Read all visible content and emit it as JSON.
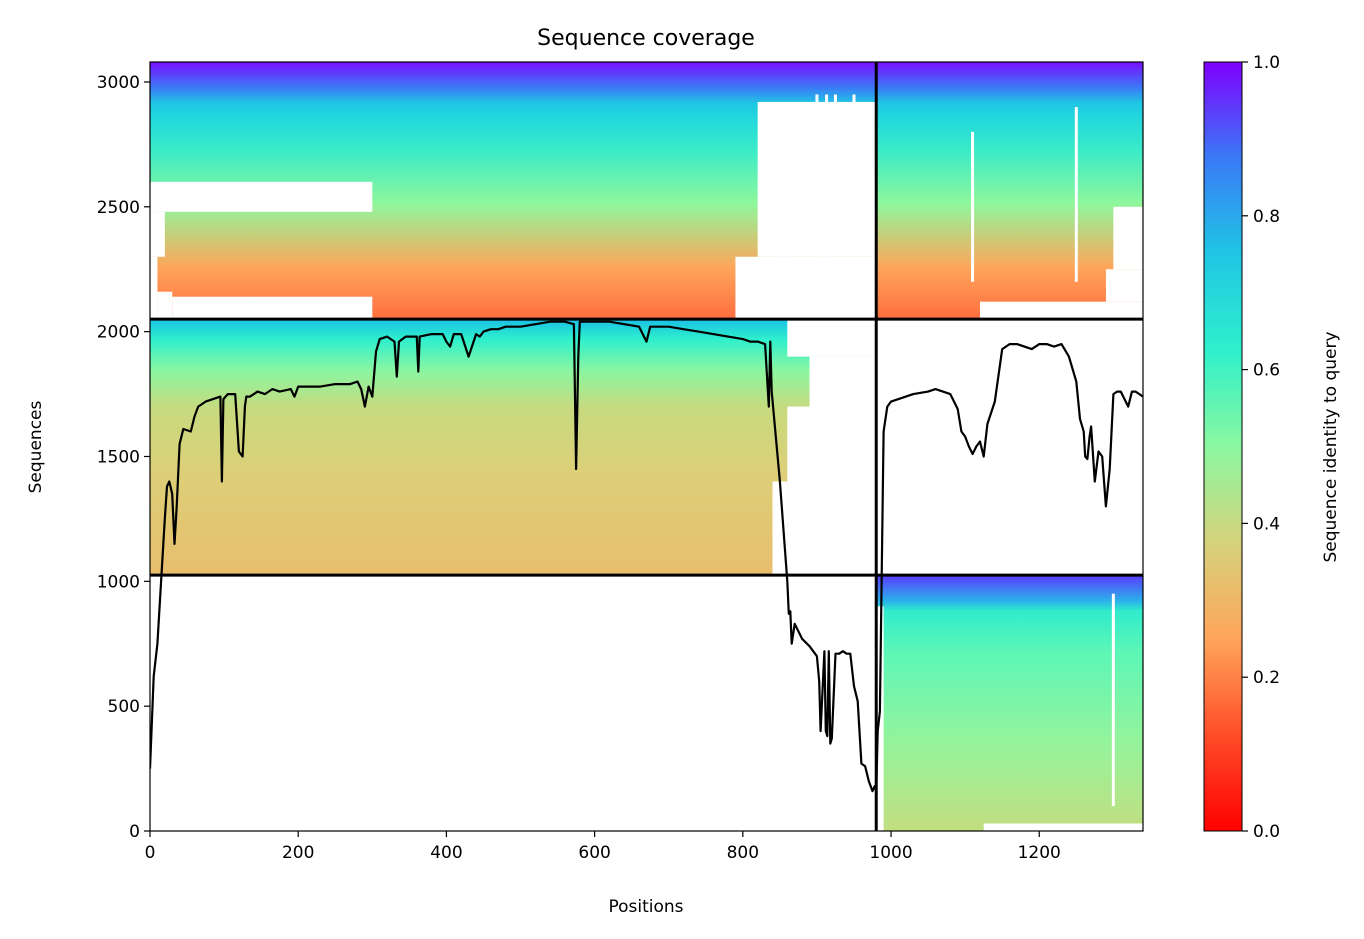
{
  "chart_data": {
    "type": "heatmap",
    "title": "Sequence coverage",
    "xlabel": "Positions",
    "ylabel": "Sequences",
    "xlim": [
      0,
      1340
    ],
    "ylim": [
      0,
      3080
    ],
    "x_ticks": [
      0,
      200,
      400,
      600,
      800,
      1000,
      1200
    ],
    "y_ticks": [
      0,
      500,
      1000,
      1500,
      2000,
      2500,
      3000
    ],
    "grid": false,
    "colormap": "rainbow",
    "colorbar": {
      "label": "Sequence identity to query",
      "range": [
        0,
        1
      ],
      "ticks": [
        0.0,
        0.2,
        0.4,
        0.6,
        0.8,
        1.0
      ],
      "tick_labels": [
        "0.0",
        "0.2",
        "0.4",
        "0.6",
        "0.8",
        "1.0"
      ]
    },
    "segment_boundaries": {
      "x": [
        980
      ],
      "y": [
        1025,
        2050
      ]
    },
    "blocks": [
      {
        "name": "paired",
        "x": [
          0,
          980
        ],
        "y": [
          2050,
          3080
        ],
        "identity_bottom": 0.18,
        "identity_top": 1.0
      },
      {
        "name": "paired",
        "x": [
          980,
          1340
        ],
        "y": [
          2050,
          3080
        ],
        "identity_bottom": 0.22,
        "identity_top": 1.0
      },
      {
        "name": "unpaired",
        "x": [
          0,
          980
        ],
        "y": [
          1025,
          2050
        ],
        "identity_bottom": 0.32,
        "identity_top": 0.75
      },
      {
        "name": "unpaired",
        "x": [
          980,
          1340
        ],
        "y": [
          0,
          1025
        ],
        "identity_bottom": 0.42,
        "identity_top": 0.9
      }
    ],
    "coverage_line": {
      "color": "#000000",
      "x": [
        0,
        5,
        10,
        15,
        20,
        23,
        26,
        30,
        33,
        36,
        40,
        45,
        55,
        60,
        65,
        75,
        85,
        95,
        97,
        99,
        105,
        115,
        120,
        125,
        128,
        130,
        135,
        145,
        155,
        165,
        175,
        190,
        195,
        200,
        210,
        230,
        250,
        270,
        280,
        285,
        290,
        295,
        300,
        305,
        310,
        320,
        330,
        333,
        336,
        345,
        360,
        362,
        364,
        380,
        395,
        400,
        405,
        410,
        420,
        430,
        440,
        445,
        450,
        460,
        470,
        480,
        500,
        520,
        540,
        560,
        572,
        575,
        578,
        580,
        590,
        600,
        620,
        640,
        660,
        670,
        675,
        680,
        700,
        720,
        740,
        760,
        780,
        800,
        810,
        820,
        830,
        835,
        837,
        839,
        850,
        860,
        862,
        864,
        866,
        870,
        880,
        890,
        895,
        900,
        903,
        905,
        910,
        912,
        914,
        916,
        918,
        920,
        925,
        930,
        935,
        940,
        945,
        950,
        955,
        960,
        965,
        970,
        975,
        978,
        980,
        982,
        985,
        990,
        995,
        1000,
        1010,
        1030,
        1050,
        1060,
        1070,
        1080,
        1090,
        1095,
        1100,
        1105,
        1110,
        1115,
        1120,
        1125,
        1130,
        1140,
        1150,
        1160,
        1170,
        1180,
        1190,
        1200,
        1210,
        1220,
        1230,
        1240,
        1250,
        1255,
        1260,
        1262,
        1265,
        1268,
        1270,
        1275,
        1280,
        1285,
        1290,
        1295,
        1300,
        1305,
        1310,
        1320,
        1325,
        1330,
        1340
      ],
      "y": [
        250,
        620,
        750,
        1000,
        1250,
        1380,
        1400,
        1350,
        1150,
        1300,
        1550,
        1610,
        1600,
        1660,
        1700,
        1720,
        1730,
        1740,
        1400,
        1730,
        1750,
        1750,
        1520,
        1500,
        1700,
        1740,
        1740,
        1760,
        1750,
        1770,
        1760,
        1770,
        1740,
        1780,
        1780,
        1780,
        1790,
        1790,
        1800,
        1770,
        1700,
        1780,
        1740,
        1920,
        1970,
        1980,
        1960,
        1820,
        1960,
        1980,
        1980,
        1840,
        1980,
        1990,
        1990,
        1960,
        1940,
        1990,
        1990,
        1900,
        1990,
        1980,
        2000,
        2010,
        2010,
        2020,
        2020,
        2030,
        2040,
        2040,
        2030,
        1450,
        1900,
        2040,
        2040,
        2040,
        2040,
        2030,
        2020,
        1960,
        2020,
        2020,
        2020,
        2010,
        2000,
        1990,
        1980,
        1970,
        1960,
        1960,
        1950,
        1700,
        1960,
        1760,
        1400,
        1000,
        870,
        880,
        750,
        830,
        770,
        740,
        720,
        700,
        600,
        400,
        720,
        400,
        380,
        720,
        350,
        370,
        710,
        710,
        720,
        710,
        710,
        580,
        520,
        270,
        260,
        200,
        160,
        180,
        160,
        400,
        480,
        1600,
        1700,
        1720,
        1730,
        1750,
        1760,
        1770,
        1760,
        1750,
        1690,
        1600,
        1580,
        1540,
        1510,
        1540,
        1560,
        1500,
        1630,
        1720,
        1930,
        1950,
        1950,
        1940,
        1930,
        1950,
        1950,
        1940,
        1950,
        1900,
        1800,
        1650,
        1600,
        1500,
        1490,
        1580,
        1620,
        1400,
        1520,
        1500,
        1300,
        1450,
        1750,
        1760,
        1760,
        1700,
        1760,
        1760,
        1740
      ]
    }
  }
}
